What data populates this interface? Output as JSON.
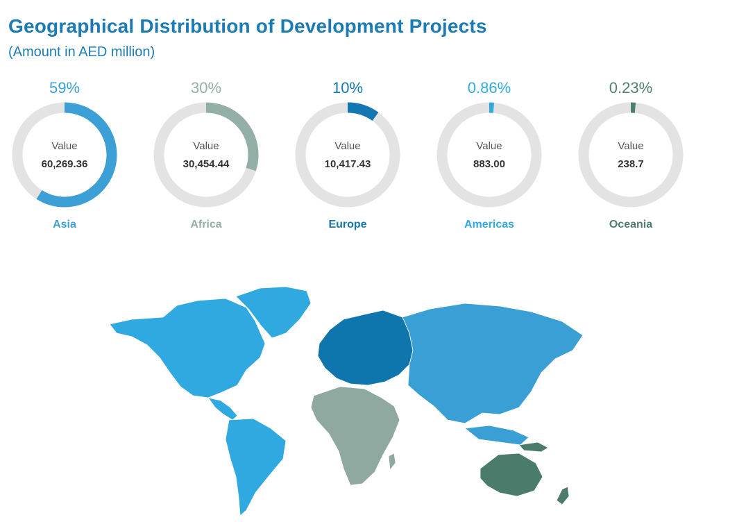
{
  "header": {
    "title": "Geographical Distribution of Development Projects",
    "subtitle": "(Amount in AED million)"
  },
  "chart_data": {
    "type": "pie",
    "title": "Geographical Distribution of Development Projects",
    "subtitle": "(Amount in AED million)",
    "value_label": "Value",
    "series": [
      {
        "name": "Asia",
        "percent_label": "59%",
        "percent": 59,
        "value": 60269.36,
        "value_label": "60,269.36",
        "color": "#3c9fd6"
      },
      {
        "name": "Africa",
        "percent_label": "30%",
        "percent": 30,
        "value": 30454.44,
        "value_label": "30,454.44",
        "color": "#94afa7"
      },
      {
        "name": "Europe",
        "percent_label": "10%",
        "percent": 10,
        "value": 10417.43,
        "value_label": "10,417.43",
        "color": "#1577b1"
      },
      {
        "name": "Americas",
        "percent_label": "0.86%",
        "percent": 0.86,
        "value": 883.0,
        "value_label": "883.00",
        "color": "#32a8e2"
      },
      {
        "name": "Oceania",
        "percent_label": "0.23%",
        "percent": 0.23,
        "value": 238.7,
        "value_label": "238.7",
        "color": "#4f7e6d"
      }
    ],
    "track_color": "#e3e3e3",
    "min_visible_percent": 1.5
  },
  "map": {
    "colors": {
      "americas": "#30a9e1",
      "greenland": "#30a9e1",
      "europe": "#0f76ad",
      "asia": "#3a9fd4",
      "africa": "#8fa9a1",
      "oceania": "#4b7c6b"
    }
  }
}
